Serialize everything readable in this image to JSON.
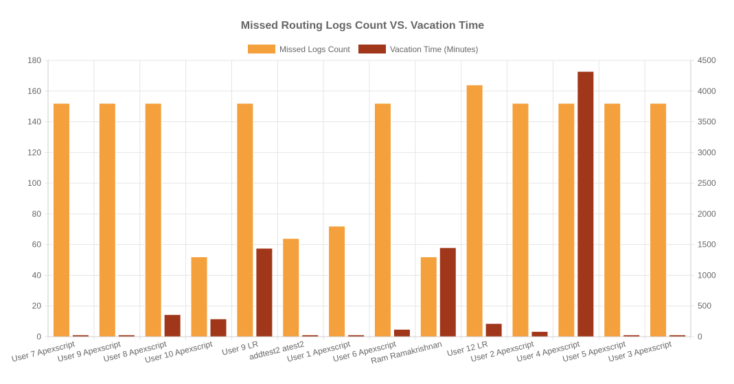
{
  "chart_data": {
    "type": "bar",
    "title": "Missed Routing Logs Count VS. Vacation Time",
    "legend_position": "top",
    "grid": true,
    "categories": [
      "User 7 Apexscript",
      "User 9 Apexscript",
      "User 8 Apexscript",
      "User 10 Apexscript",
      "User 9 LR",
      "addtest2 atest2",
      "User 1 Apexscript",
      "User 6 Apexscript",
      "Ram Ramakrishnan",
      "User 12 LR",
      "User 2 Apexscript",
      "User 4 Apexscript",
      "User 5 Apexscript",
      "User 3 Apexscript"
    ],
    "series": [
      {
        "name": "Missed Logs Count",
        "axis": "left",
        "color": "#f4a03c",
        "values": [
          152,
          152,
          152,
          52,
          152,
          64,
          72,
          152,
          52,
          164,
          152,
          152,
          152,
          152
        ]
      },
      {
        "name": "Vacation Time (Minutes)",
        "axis": "right",
        "color": "#a0361a",
        "values": [
          30,
          30,
          360,
          290,
          1440,
          30,
          30,
          120,
          1450,
          215,
          85,
          4320,
          30,
          30
        ]
      }
    ],
    "y_left": {
      "min": 0,
      "max": 180,
      "step": 20
    },
    "y_right": {
      "min": 0,
      "max": 4500,
      "step": 500
    }
  }
}
